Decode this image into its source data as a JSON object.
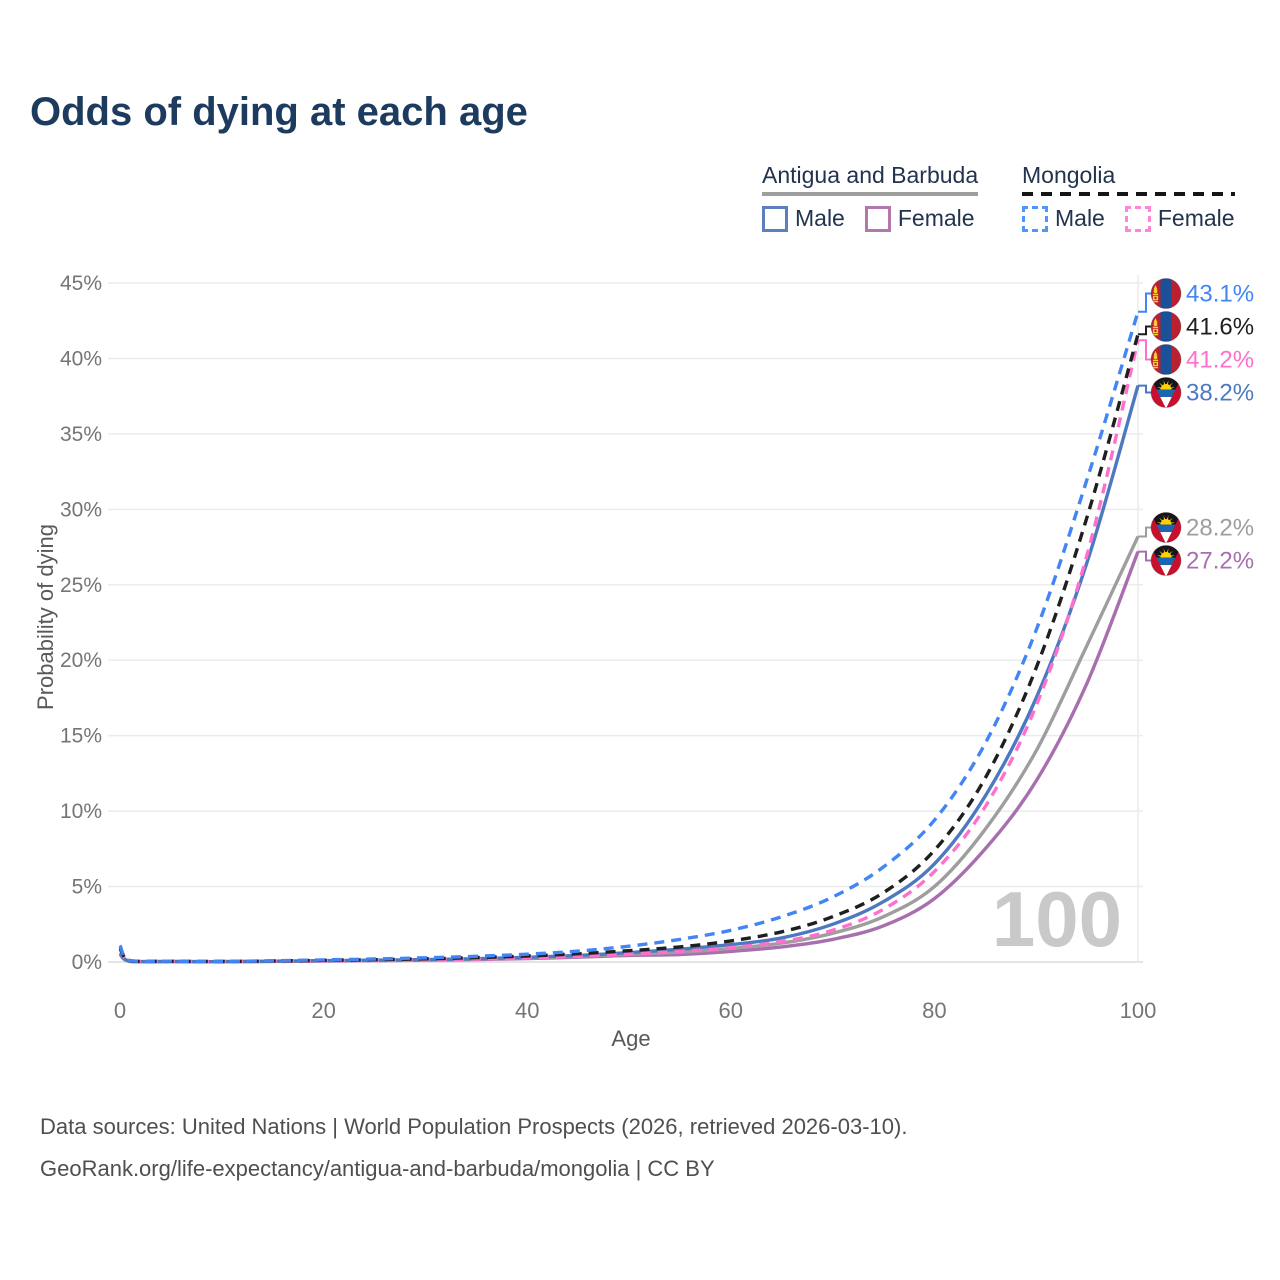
{
  "title": "Odds of dying at each age",
  "watermark": "100",
  "legend": {
    "groups": [
      {
        "name": "Antigua and Barbuda",
        "underline_style": "solid",
        "underline_color": "#9e9e9e",
        "items": [
          {
            "label": "Male",
            "swatch_color": "#5b80bd",
            "swatch_dashed": false
          },
          {
            "label": "Female",
            "swatch_color": "#b277ad",
            "swatch_dashed": false
          }
        ]
      },
      {
        "name": "Mongolia",
        "underline_style": "dashed",
        "underline_color": "#151515",
        "items": [
          {
            "label": "Male",
            "swatch_color": "#5096ff",
            "swatch_dashed": true
          },
          {
            "label": "Female",
            "swatch_color": "#ff85d8",
            "swatch_dashed": true
          }
        ]
      }
    ]
  },
  "chart_data": {
    "type": "line",
    "title": "Odds of dying at each age",
    "xlabel": "Age",
    "ylabel": "Probability of dying",
    "x_ticks": [
      0,
      20,
      40,
      60,
      80,
      100
    ],
    "y_tick_labels": [
      "0%",
      "5%",
      "10%",
      "15%",
      "20%",
      "25%",
      "30%",
      "35%",
      "40%",
      "45%"
    ],
    "y_tick_values": [
      0,
      5,
      10,
      15,
      20,
      25,
      30,
      35,
      40,
      45
    ],
    "xlim": [
      0,
      100
    ],
    "ylim_percent": [
      0,
      45
    ],
    "grid": "horizontal",
    "ages": [
      0,
      1,
      5,
      10,
      15,
      20,
      25,
      30,
      35,
      40,
      45,
      50,
      55,
      60,
      65,
      70,
      75,
      80,
      85,
      90,
      95,
      100
    ],
    "series": [
      {
        "name": "Antigua and Barbuda Female",
        "country": "Antigua and Barbuda",
        "sex": "Female",
        "color": "#a76fad",
        "dashed": false,
        "flag": "antigua-and-barbuda",
        "end_label": "27.2%",
        "end_value": 27.2,
        "values": [
          0.5,
          0.04,
          0.025,
          0.02,
          0.04,
          0.06,
          0.09,
          0.12,
          0.16,
          0.23,
          0.32,
          0.44,
          0.5,
          0.7,
          1.0,
          1.5,
          2.4,
          4.2,
          7.5,
          12.0,
          18.5,
          27.2
        ]
      },
      {
        "name": "Antigua and Barbuda Both sexes",
        "country": "Antigua and Barbuda",
        "sex": "Both",
        "color": "#9e9e9e",
        "dashed": false,
        "flag": "antigua-and-barbuda",
        "end_label": "28.2%",
        "end_value": 28.2,
        "values": [
          0.55,
          0.045,
          0.028,
          0.022,
          0.045,
          0.07,
          0.1,
          0.14,
          0.19,
          0.27,
          0.38,
          0.52,
          0.65,
          0.9,
          1.25,
          1.9,
          3.0,
          5.0,
          8.8,
          14.0,
          21.0,
          28.2
        ]
      },
      {
        "name": "Antigua and Barbuda Male",
        "country": "Antigua and Barbuda",
        "sex": "Male",
        "color": "#4d79c1",
        "dashed": false,
        "flag": "antigua-and-barbuda",
        "end_label": "38.2%",
        "end_value": 38.2,
        "values": [
          0.6,
          0.05,
          0.03,
          0.025,
          0.05,
          0.09,
          0.12,
          0.16,
          0.22,
          0.31,
          0.44,
          0.62,
          0.85,
          1.15,
          1.6,
          2.5,
          4.0,
          6.5,
          11.0,
          17.5,
          26.5,
          38.2
        ]
      },
      {
        "name": "Mongolia Female",
        "country": "Mongolia",
        "sex": "Female",
        "color": "#ff70cc",
        "dashed": true,
        "flag": "mongolia",
        "end_label": "41.2%",
        "end_value": 41.2,
        "values": [
          0.85,
          0.07,
          0.04,
          0.03,
          0.05,
          0.08,
          0.1,
          0.14,
          0.19,
          0.27,
          0.38,
          0.52,
          0.7,
          0.95,
          1.35,
          2.1,
          3.5,
          6.0,
          10.3,
          17.0,
          27.0,
          41.2
        ]
      },
      {
        "name": "Mongolia Both sexes",
        "country": "Mongolia",
        "sex": "Both",
        "color": "#1f1f1f",
        "dashed": true,
        "flag": "mongolia",
        "end_label": "41.6%",
        "end_value": 41.6,
        "values": [
          0.95,
          0.08,
          0.045,
          0.035,
          0.065,
          0.11,
          0.15,
          0.21,
          0.29,
          0.4,
          0.55,
          0.75,
          1.0,
          1.4,
          2.0,
          3.0,
          4.6,
          7.4,
          12.2,
          19.5,
          29.5,
          41.6
        ]
      },
      {
        "name": "Mongolia Male",
        "country": "Mongolia",
        "sex": "Male",
        "color": "#4285f4",
        "dashed": true,
        "flag": "mongolia",
        "end_label": "43.1%",
        "end_value": 43.1,
        "values": [
          1.1,
          0.09,
          0.05,
          0.04,
          0.08,
          0.14,
          0.2,
          0.28,
          0.38,
          0.52,
          0.72,
          1.05,
          1.5,
          2.1,
          3.0,
          4.3,
          6.3,
          9.4,
          14.5,
          22.0,
          32.0,
          43.1
        ]
      }
    ]
  },
  "footer": {
    "line1": "Data sources: United Nations | World Population Prospects (2026, retrieved 2026-03-10).",
    "line2": "GeoRank.org/life-expectancy/antigua-and-barbuda/mongolia | CC BY"
  }
}
